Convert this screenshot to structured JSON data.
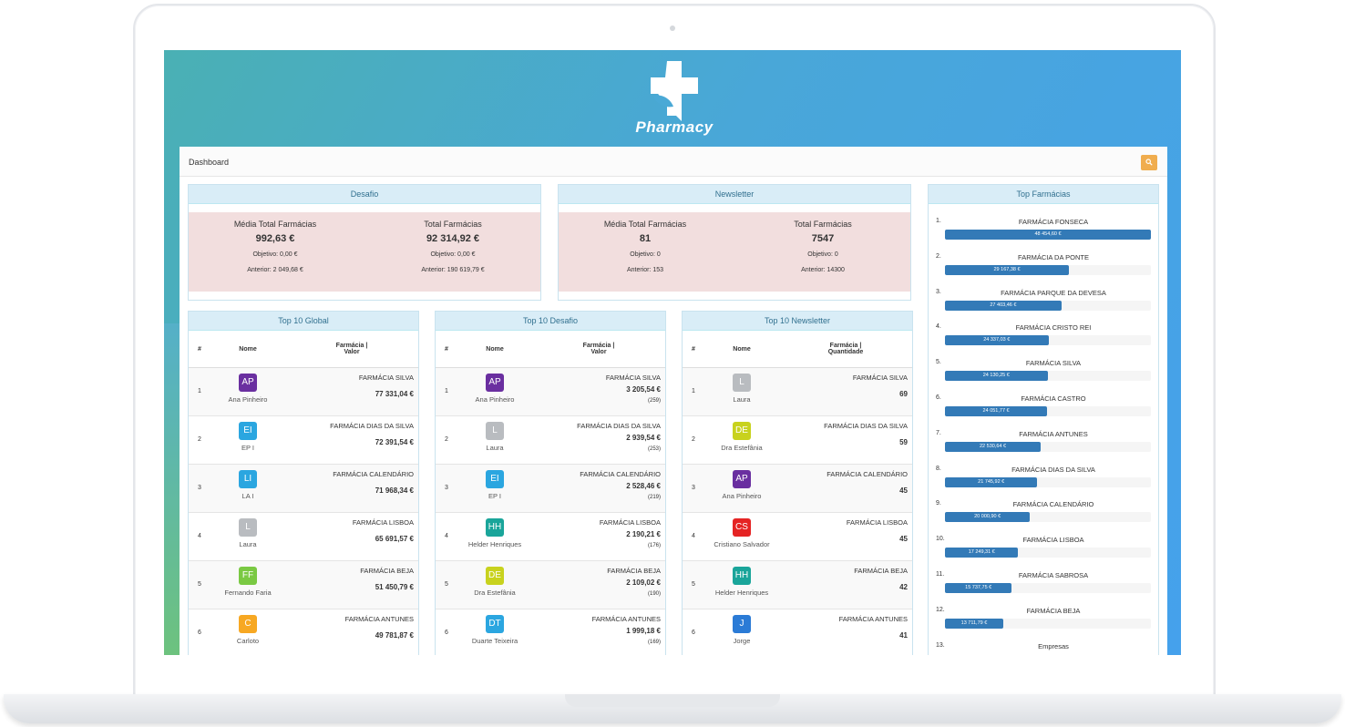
{
  "app": {
    "brand": "Pharmacy",
    "page_title": "Dashboard"
  },
  "desafio": {
    "title": "Desafio",
    "left": {
      "label": "Média Total Farmácias",
      "value": "992,63 €",
      "objetivo": "Objetivo: 0,00 €",
      "anterior": "Anterior: 2 049,68 €"
    },
    "right": {
      "label": "Total Farmácias",
      "value": "92 314,92 €",
      "objetivo": "Objetivo: 0,00 €",
      "anterior": "Anterior: 190 619,79 €"
    }
  },
  "newsletter": {
    "title": "Newsletter",
    "left": {
      "label": "Média Total Farmácias",
      "value": "81",
      "objetivo": "Objetivo: 0",
      "anterior": "Anterior: 153"
    },
    "right": {
      "label": "Total Farmácias",
      "value": "7547",
      "objetivo": "Objetivo: 0",
      "anterior": "Anterior: 14300"
    }
  },
  "top_global": {
    "title": "Top 10 Global",
    "headers": {
      "num": "#",
      "name": "Nome",
      "value_line1": "Farmácia  |",
      "value_line2": "Valor"
    },
    "rows": [
      {
        "n": "1",
        "initials": "AP",
        "name": "Ana Pinheiro",
        "color": "#6a2fa0",
        "pharmacy": "FARMÁCIA SILVA",
        "amount": "77 331,04 €"
      },
      {
        "n": "2",
        "initials": "EI",
        "name": "EP I",
        "color": "#2ba6e0",
        "pharmacy": "FARMÁCIA DIAS DA SILVA",
        "amount": "72 391,54 €"
      },
      {
        "n": "3",
        "initials": "LI",
        "name": "LA I",
        "color": "#2ba6e0",
        "pharmacy": "FARMÁCIA CALENDÁRIO",
        "amount": "71 968,34 €"
      },
      {
        "n": "4",
        "initials": "L",
        "name": "Laura",
        "color": "#b9bcc0",
        "pharmacy": "FARMÁCIA LISBOA",
        "amount": "65 691,57 €"
      },
      {
        "n": "5",
        "initials": "FF",
        "name": "Fernando Faria",
        "color": "#7ac943",
        "pharmacy": "FARMÁCIA BEJA",
        "amount": "51 450,79 €"
      },
      {
        "n": "6",
        "initials": "C",
        "name": "Carloto",
        "color": "#f7a823",
        "pharmacy": "FARMÁCIA ANTUNES",
        "amount": "49 781,87 €"
      }
    ]
  },
  "top_desafio": {
    "title": "Top 10 Desafio",
    "headers": {
      "num": "#",
      "name": "Nome",
      "value_line1": "Farmácia  |",
      "value_line2": "Valor"
    },
    "rows": [
      {
        "n": "1",
        "initials": "AP",
        "name": "Ana Pinheiro",
        "color": "#6a2fa0",
        "pharmacy": "FARMÁCIA SILVA",
        "amount": "3 205,54 €",
        "count": "(259)"
      },
      {
        "n": "2",
        "initials": "L",
        "name": "Laura",
        "color": "#b9bcc0",
        "pharmacy": "FARMÁCIA DIAS DA SILVA",
        "amount": "2 939,54 €",
        "count": "(253)"
      },
      {
        "n": "3",
        "initials": "EI",
        "name": "EP I",
        "color": "#2ba6e0",
        "pharmacy": "FARMÁCIA CALENDÁRIO",
        "amount": "2 528,46 €",
        "count": "(219)"
      },
      {
        "n": "4",
        "initials": "HH",
        "name": "Helder Henriques",
        "color": "#1aa59a",
        "pharmacy": "FARMÁCIA LISBOA",
        "amount": "2 190,21 €",
        "count": "(176)"
      },
      {
        "n": "5",
        "initials": "DE",
        "name": "Dra Estefânia",
        "color": "#c8d21e",
        "pharmacy": "FARMÁCIA BEJA",
        "amount": "2 109,02 €",
        "count": "(190)"
      },
      {
        "n": "6",
        "initials": "DT",
        "name": "Duarte Teixeira",
        "color": "#2ba6e0",
        "pharmacy": "FARMÁCIA ANTUNES",
        "amount": "1 999,18 €",
        "count": "(169)"
      }
    ]
  },
  "top_newsletter": {
    "title": "Top 10 Newsletter",
    "headers": {
      "num": "#",
      "name": "Nome",
      "value_line1": "Farmácia  |",
      "value_line2": "Quantidade"
    },
    "rows": [
      {
        "n": "1",
        "initials": "L",
        "name": "Laura",
        "color": "#b9bcc0",
        "pharmacy": "FARMÁCIA SILVA",
        "amount": "69"
      },
      {
        "n": "2",
        "initials": "DE",
        "name": "Dra Estefânia",
        "color": "#c8d21e",
        "pharmacy": "FARMÁCIA DIAS DA SILVA",
        "amount": "59"
      },
      {
        "n": "3",
        "initials": "AP",
        "name": "Ana Pinheiro",
        "color": "#6a2fa0",
        "pharmacy": "FARMÁCIA CALENDÁRIO",
        "amount": "45"
      },
      {
        "n": "4",
        "initials": "CS",
        "name": "Cristiano Salvador",
        "color": "#e52424",
        "pharmacy": "FARMÁCIA LISBOA",
        "amount": "45"
      },
      {
        "n": "5",
        "initials": "HH",
        "name": "Helder Henriques",
        "color": "#1aa59a",
        "pharmacy": "FARMÁCIA BEJA",
        "amount": "42"
      },
      {
        "n": "6",
        "initials": "J",
        "name": "Jorge",
        "color": "#2b7bd6",
        "pharmacy": "FARMÁCIA ANTUNES",
        "amount": "41"
      }
    ]
  },
  "top_farmacias": {
    "title": "Top Farmácias",
    "items": [
      {
        "n": "1.",
        "name": "FARMÁCIA FONSECA",
        "value_label": "48 454,60 €",
        "value": 48454.6
      },
      {
        "n": "2.",
        "name": "FARMÁCIA DA PONTE",
        "value_label": "29 167,38 €",
        "value": 29167.38
      },
      {
        "n": "3.",
        "name": "FARMÁCIA PARQUE DA DEVESA",
        "value_label": "27 403,46 €",
        "value": 27403.46
      },
      {
        "n": "4.",
        "name": "FARMÁCIA CRISTO REI",
        "value_label": "24 337,03 €",
        "value": 24337.03
      },
      {
        "n": "5.",
        "name": "FARMÁCIA SILVA",
        "value_label": "24 130,25 €",
        "value": 24130.25
      },
      {
        "n": "6.",
        "name": "FARMÁCIA CASTRO",
        "value_label": "24 051,77 €",
        "value": 24051.77
      },
      {
        "n": "7.",
        "name": "FARMÁCIA ANTUNES",
        "value_label": "22 530,64 €",
        "value": 22530.64
      },
      {
        "n": "8.",
        "name": "FARMÁCIA DIAS DA SILVA",
        "value_label": "21 745,92 €",
        "value": 21745.92
      },
      {
        "n": "9.",
        "name": "FARMÁCIA CALENDÁRIO",
        "value_label": "20 000,90 €",
        "value": 20000.9
      },
      {
        "n": "10.",
        "name": "FARMÁCIA LISBOA",
        "value_label": "17 249,31 €",
        "value": 17249.31
      },
      {
        "n": "11.",
        "name": "FARMÁCIA SABROSA",
        "value_label": "15 737,75 €",
        "value": 15737.75
      },
      {
        "n": "12.",
        "name": "FARMÁCIA BEJA",
        "value_label": "13 711,79 €",
        "value": 13711.79
      },
      {
        "n": "13.",
        "name": "Empresas",
        "value_label": "",
        "value": null
      }
    ]
  },
  "colors": {
    "header_bg": "#d9edf7",
    "header_text": "#31708f",
    "stats_bg": "#f2dede",
    "bar": "#337ab7",
    "search_button": "#f0ad4e"
  },
  "icons": {
    "logo": "pharmacy-cross-leaf-icon",
    "search": "search-icon"
  }
}
